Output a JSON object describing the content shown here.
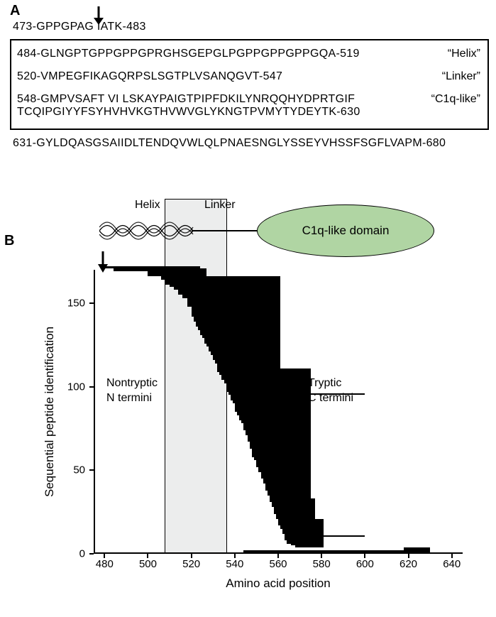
{
  "panelA": {
    "label": "A",
    "arrow_x_seq_idx": 7,
    "pre_seq": "473-GPPGPAG  IATK-483",
    "box_rows": [
      {
        "seq": "484-GLNGPTGPPGPPGPRGHSGEPGLPGPPGPPGPPGQA-519",
        "label": "“Helix”"
      },
      {
        "seq": "520-VMPEGFIKAGQRPSLSGTPLVSANQGVT-547",
        "label": "“Linker”"
      },
      {
        "seq": "548-GMPVSAFT  VI LSKAYPAIGTPIPFDKILYNRQQHYDPRTGIF\n  TCQIPGIYYFSYHVHVKGTHVWVGLYKNGTPVMYTYDEYTK-630",
        "label": "“C1q-like”"
      }
    ],
    "post_seq": "631-GYLDQASGSAIIDLTENDQVWLQLPNAESNGLYSSEYVHSSFSGFLVAPM-680"
  },
  "panelB": {
    "label": "B",
    "schematic": {
      "helix_label": "Helix",
      "linker_label": "Linker",
      "c1q_label": "C1q-like domain",
      "c1q_fill": "#b0d5a3",
      "linker_shade_color": "#eceded",
      "linker_shade_border": "#000000"
    },
    "chart": {
      "type": "horizontal-span",
      "x_axis": {
        "label": "Amino acid position",
        "min": 475,
        "max": 645,
        "tick_start": 480,
        "tick_step": 20
      },
      "y_axis": {
        "label": "Sequential peptide identification",
        "min": 0,
        "max": 170,
        "tick_start": 0,
        "tick_step": 50
      },
      "bar_color": "#000000",
      "background": "#ffffff",
      "annotations": {
        "nontryptic": "Nontryptic\nN termini",
        "tryptic": "Tryptic\nC termini"
      },
      "peptides": [
        {
          "s": 480,
          "e": 524
        },
        {
          "s": 484,
          "e": 527
        },
        {
          "s": 484,
          "e": 527
        },
        {
          "s": 500,
          "e": 527
        },
        {
          "s": 500,
          "e": 527
        },
        {
          "s": 500,
          "e": 527
        },
        {
          "s": 506,
          "e": 561
        },
        {
          "s": 506,
          "e": 561
        },
        {
          "s": 508,
          "e": 561
        },
        {
          "s": 508,
          "e": 561
        },
        {
          "s": 508,
          "e": 561
        },
        {
          "s": 510,
          "e": 561
        },
        {
          "s": 512,
          "e": 561
        },
        {
          "s": 512,
          "e": 561
        },
        {
          "s": 514,
          "e": 561
        },
        {
          "s": 514,
          "e": 561
        },
        {
          "s": 514,
          "e": 561
        },
        {
          "s": 516,
          "e": 561
        },
        {
          "s": 516,
          "e": 561
        },
        {
          "s": 518,
          "e": 561
        },
        {
          "s": 518,
          "e": 561
        },
        {
          "s": 518,
          "e": 561
        },
        {
          "s": 518,
          "e": 561
        },
        {
          "s": 518,
          "e": 561
        },
        {
          "s": 520,
          "e": 561
        },
        {
          "s": 520,
          "e": 561
        },
        {
          "s": 520,
          "e": 561
        },
        {
          "s": 520,
          "e": 561
        },
        {
          "s": 520,
          "e": 561
        },
        {
          "s": 520,
          "e": 561
        },
        {
          "s": 521,
          "e": 561
        },
        {
          "s": 521,
          "e": 561
        },
        {
          "s": 521,
          "e": 561
        },
        {
          "s": 522,
          "e": 561
        },
        {
          "s": 522,
          "e": 561
        },
        {
          "s": 522,
          "e": 561
        },
        {
          "s": 523,
          "e": 561
        },
        {
          "s": 523,
          "e": 561
        },
        {
          "s": 524,
          "e": 561
        },
        {
          "s": 524,
          "e": 561
        },
        {
          "s": 524,
          "e": 561
        },
        {
          "s": 525,
          "e": 561
        },
        {
          "s": 525,
          "e": 561
        },
        {
          "s": 526,
          "e": 561
        },
        {
          "s": 526,
          "e": 561
        },
        {
          "s": 526,
          "e": 561
        },
        {
          "s": 527,
          "e": 561
        },
        {
          "s": 527,
          "e": 561
        },
        {
          "s": 528,
          "e": 561
        },
        {
          "s": 528,
          "e": 561
        },
        {
          "s": 528,
          "e": 561
        },
        {
          "s": 529,
          "e": 561
        },
        {
          "s": 529,
          "e": 561
        },
        {
          "s": 530,
          "e": 561
        },
        {
          "s": 530,
          "e": 561
        },
        {
          "s": 530,
          "e": 561
        },
        {
          "s": 531,
          "e": 561
        },
        {
          "s": 531,
          "e": 561
        },
        {
          "s": 532,
          "e": 561
        },
        {
          "s": 532,
          "e": 561
        },
        {
          "s": 532,
          "e": 561
        },
        {
          "s": 532,
          "e": 575
        },
        {
          "s": 532,
          "e": 575
        },
        {
          "s": 533,
          "e": 575
        },
        {
          "s": 533,
          "e": 575
        },
        {
          "s": 534,
          "e": 575
        },
        {
          "s": 534,
          "e": 575
        },
        {
          "s": 534,
          "e": 575
        },
        {
          "s": 535,
          "e": 575
        },
        {
          "s": 535,
          "e": 575
        },
        {
          "s": 536,
          "e": 575
        },
        {
          "s": 536,
          "e": 575
        },
        {
          "s": 536,
          "e": 575
        },
        {
          "s": 536,
          "e": 575
        },
        {
          "s": 536,
          "e": 575
        },
        {
          "s": 537,
          "e": 575
        },
        {
          "s": 537,
          "e": 600
        },
        {
          "s": 538,
          "e": 575
        },
        {
          "s": 538,
          "e": 575
        },
        {
          "s": 538,
          "e": 575
        },
        {
          "s": 539,
          "e": 575
        },
        {
          "s": 539,
          "e": 575
        },
        {
          "s": 540,
          "e": 575
        },
        {
          "s": 540,
          "e": 575
        },
        {
          "s": 540,
          "e": 575
        },
        {
          "s": 540,
          "e": 575
        },
        {
          "s": 540,
          "e": 575
        },
        {
          "s": 541,
          "e": 575
        },
        {
          "s": 541,
          "e": 575
        },
        {
          "s": 542,
          "e": 575
        },
        {
          "s": 542,
          "e": 575
        },
        {
          "s": 542,
          "e": 575
        },
        {
          "s": 543,
          "e": 575
        },
        {
          "s": 543,
          "e": 575
        },
        {
          "s": 544,
          "e": 575
        },
        {
          "s": 544,
          "e": 575
        },
        {
          "s": 544,
          "e": 575
        },
        {
          "s": 544,
          "e": 575
        },
        {
          "s": 545,
          "e": 575
        },
        {
          "s": 545,
          "e": 575
        },
        {
          "s": 545,
          "e": 575
        },
        {
          "s": 546,
          "e": 575
        },
        {
          "s": 546,
          "e": 575
        },
        {
          "s": 546,
          "e": 575
        },
        {
          "s": 546,
          "e": 575
        },
        {
          "s": 547,
          "e": 575
        },
        {
          "s": 547,
          "e": 575
        },
        {
          "s": 547,
          "e": 575
        },
        {
          "s": 547,
          "e": 575
        },
        {
          "s": 548,
          "e": 575
        },
        {
          "s": 548,
          "e": 575
        },
        {
          "s": 548,
          "e": 575
        },
        {
          "s": 548,
          "e": 575
        },
        {
          "s": 548,
          "e": 575
        },
        {
          "s": 549,
          "e": 575
        },
        {
          "s": 549,
          "e": 575
        },
        {
          "s": 550,
          "e": 575
        },
        {
          "s": 550,
          "e": 575
        },
        {
          "s": 550,
          "e": 575
        },
        {
          "s": 550,
          "e": 575
        },
        {
          "s": 551,
          "e": 575
        },
        {
          "s": 551,
          "e": 575
        },
        {
          "s": 551,
          "e": 575
        },
        {
          "s": 552,
          "e": 575
        },
        {
          "s": 552,
          "e": 575
        },
        {
          "s": 552,
          "e": 575
        },
        {
          "s": 552,
          "e": 575
        },
        {
          "s": 553,
          "e": 575
        },
        {
          "s": 553,
          "e": 575
        },
        {
          "s": 553,
          "e": 575
        },
        {
          "s": 554,
          "e": 575
        },
        {
          "s": 554,
          "e": 575
        },
        {
          "s": 554,
          "e": 575
        },
        {
          "s": 554,
          "e": 575
        },
        {
          "s": 555,
          "e": 575
        },
        {
          "s": 555,
          "e": 575
        },
        {
          "s": 555,
          "e": 575
        },
        {
          "s": 556,
          "e": 575
        },
        {
          "s": 556,
          "e": 575
        },
        {
          "s": 556,
          "e": 577
        },
        {
          "s": 556,
          "e": 577
        },
        {
          "s": 557,
          "e": 577
        },
        {
          "s": 557,
          "e": 577
        },
        {
          "s": 557,
          "e": 577
        },
        {
          "s": 558,
          "e": 577
        },
        {
          "s": 558,
          "e": 577
        },
        {
          "s": 558,
          "e": 577
        },
        {
          "s": 558,
          "e": 577
        },
        {
          "s": 559,
          "e": 577
        },
        {
          "s": 559,
          "e": 577
        },
        {
          "s": 559,
          "e": 577
        },
        {
          "s": 560,
          "e": 581
        },
        {
          "s": 560,
          "e": 581
        },
        {
          "s": 560,
          "e": 581
        },
        {
          "s": 560,
          "e": 581
        },
        {
          "s": 561,
          "e": 581
        },
        {
          "s": 561,
          "e": 581
        },
        {
          "s": 562,
          "e": 581
        },
        {
          "s": 562,
          "e": 581
        },
        {
          "s": 562,
          "e": 581
        },
        {
          "s": 563,
          "e": 581
        },
        {
          "s": 563,
          "e": 600
        },
        {
          "s": 563,
          "e": 581
        },
        {
          "s": 563,
          "e": 581
        },
        {
          "s": 564,
          "e": 581
        },
        {
          "s": 564,
          "e": 581
        },
        {
          "s": 566,
          "e": 581
        },
        {
          "s": 568,
          "e": 581
        },
        {
          "s": 618,
          "e": 630
        },
        {
          "s": 618,
          "e": 630
        },
        {
          "s": 544,
          "e": 630
        },
        {
          "s": 618,
          "e": 630
        }
      ]
    }
  }
}
